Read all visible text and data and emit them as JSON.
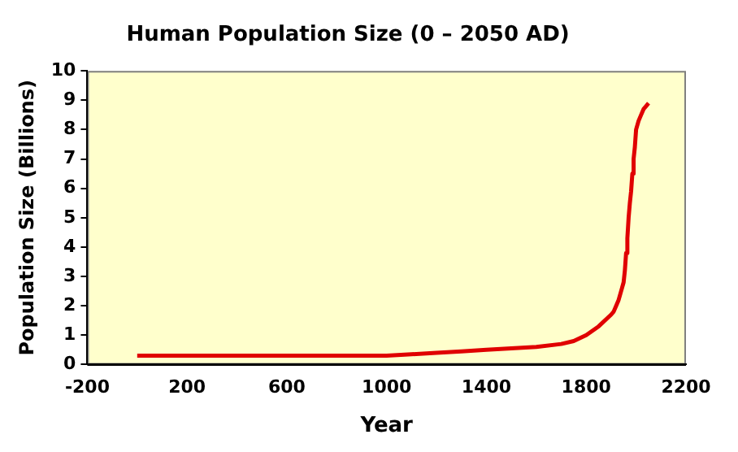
{
  "chart_data": {
    "type": "line",
    "title": "Human Population Size (0 – 2050 AD)",
    "xlabel": "Year",
    "ylabel": "Population Size (Billions)",
    "x": [
      0,
      1000,
      1100,
      1200,
      1300,
      1400,
      1500,
      1600,
      1700,
      1750,
      1800,
      1850,
      1900,
      1910,
      1920,
      1930,
      1940,
      1950,
      1955,
      1960,
      1965,
      1970,
      1975,
      1980,
      1985,
      1990,
      1995,
      2000,
      2010,
      2020,
      2030,
      2040,
      2050
    ],
    "series": [
      {
        "color": "#e00000",
        "values": [
          0.3,
          0.3,
          0.35,
          0.4,
          0.45,
          0.5,
          0.55,
          0.6,
          0.7,
          0.8,
          1.0,
          1.3,
          1.7,
          1.8,
          2.0,
          2.2,
          2.5,
          2.8,
          3.2,
          3.8,
          4.3,
          5.0,
          5.5,
          5.9,
          6.5,
          7.0,
          7.4,
          8.0,
          8.3,
          8.5,
          8.7,
          8.8,
          8.9
        ]
      }
    ],
    "xlim": [
      -200,
      2200
    ],
    "xticks": [
      -200,
      200,
      600,
      1000,
      1400,
      1800,
      2200
    ],
    "ylim": [
      0,
      10
    ],
    "yticks": [
      0,
      1,
      2,
      3,
      4,
      5,
      6,
      7,
      8,
      9,
      10
    ],
    "grid": false,
    "legend": false,
    "marker": "none",
    "line_style": "solid"
  }
}
